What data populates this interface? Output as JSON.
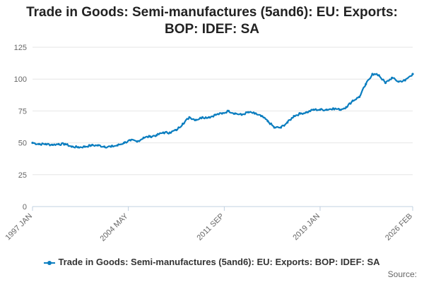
{
  "chart_data": {
    "type": "line",
    "title_line1": "Trade in Goods: Semi-manufactures (5and6): EU: Exports:",
    "title_line2": "BOP: IDEF: SA",
    "xlabel": "",
    "ylabel": "",
    "ylim": [
      0,
      125
    ],
    "yticks": [
      0,
      25,
      50,
      75,
      100,
      125
    ],
    "xlim": [
      1997.0,
      2026.083
    ],
    "xticks": [
      {
        "label": "1997 JAN",
        "value": 1997.0
      },
      {
        "label": "2004 MAY",
        "value": 2004.33
      },
      {
        "label": "2011 SEP",
        "value": 2011.67
      },
      {
        "label": "2019 JAN",
        "value": 2019.0
      },
      {
        "label": "2026 FEB",
        "value": 2026.083
      }
    ],
    "grid": true,
    "legend_position": "bottom",
    "series": [
      {
        "name": "Trade in Goods: Semi-manufactures (5and6): EU: Exports: BOP: IDEF: SA",
        "color": "#0a7dbf",
        "x": [
          1997.0,
          1997.5,
          1998.0,
          1998.5,
          1999.0,
          1999.5,
          2000.0,
          2000.5,
          2001.0,
          2001.5,
          2002.0,
          2002.5,
          2003.0,
          2003.5,
          2004.0,
          2004.5,
          2005.0,
          2005.5,
          2006.0,
          2006.5,
          2007.0,
          2007.5,
          2008.0,
          2008.5,
          2009.0,
          2009.5,
          2010.0,
          2010.5,
          2011.0,
          2011.5,
          2012.0,
          2012.5,
          2013.0,
          2013.5,
          2014.0,
          2014.5,
          2015.0,
          2015.5,
          2016.0,
          2016.5,
          2017.0,
          2017.5,
          2018.0,
          2018.5,
          2019.0,
          2019.5,
          2020.0,
          2020.5,
          2021.0,
          2021.5,
          2022.0,
          2022.5,
          2023.0,
          2023.5,
          2024.0,
          2024.5,
          2025.0,
          2025.5,
          2026.083
        ],
        "values": [
          50,
          49,
          49,
          48.5,
          49,
          49,
          47,
          46.5,
          47,
          48,
          48,
          47,
          47,
          48,
          50,
          52,
          51,
          54,
          55,
          56,
          58,
          58,
          60,
          65,
          70,
          68,
          70,
          70,
          72,
          73,
          75,
          73,
          72,
          74,
          73,
          71,
          67,
          62,
          62,
          66,
          71,
          73,
          74,
          76,
          76,
          76,
          77,
          76,
          78,
          83,
          86,
          96,
          104,
          103,
          97,
          101,
          98,
          99,
          104
        ]
      }
    ]
  },
  "legend": {
    "label": "Trade in Goods: Semi-manufactures (5and6): EU: Exports: BOP: IDEF: SA"
  },
  "source": "Source:"
}
